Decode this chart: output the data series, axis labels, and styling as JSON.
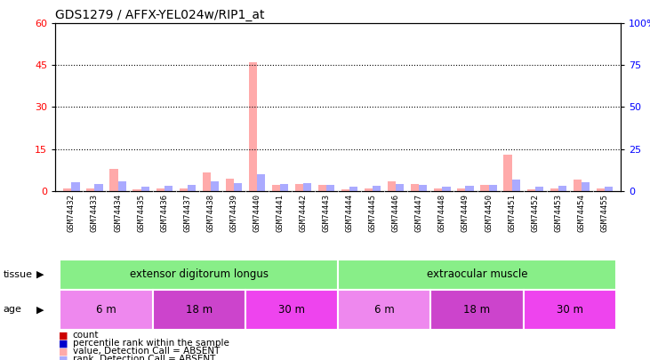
{
  "title": "GDS1279 / AFFX-YEL024w/RIP1_at",
  "samples": [
    "GSM74432",
    "GSM74433",
    "GSM74434",
    "GSM74435",
    "GSM74436",
    "GSM74437",
    "GSM74438",
    "GSM74439",
    "GSM74440",
    "GSM74441",
    "GSM74442",
    "GSM74443",
    "GSM74444",
    "GSM74445",
    "GSM74446",
    "GSM74447",
    "GSM74448",
    "GSM74449",
    "GSM74450",
    "GSM74451",
    "GSM74452",
    "GSM74453",
    "GSM74454",
    "GSM74455"
  ],
  "count_values": [
    1.0,
    1.0,
    8.0,
    0.5,
    1.0,
    1.0,
    6.5,
    4.5,
    46.0,
    2.0,
    2.5,
    2.0,
    0.5,
    1.0,
    3.5,
    2.5,
    0.8,
    1.0,
    2.0,
    13.0,
    0.5,
    1.0,
    4.0,
    1.0
  ],
  "rank_values": [
    5.0,
    4.0,
    5.5,
    2.5,
    3.0,
    3.5,
    5.5,
    4.5,
    10.0,
    4.0,
    4.5,
    3.5,
    2.5,
    3.0,
    4.0,
    3.5,
    2.5,
    3.0,
    3.5,
    6.5,
    2.5,
    3.0,
    5.0,
    2.5
  ],
  "absent_flag": [
    true,
    true,
    true,
    true,
    true,
    true,
    true,
    true,
    true,
    true,
    true,
    true,
    true,
    true,
    true,
    true,
    true,
    true,
    true,
    true,
    true,
    true,
    true,
    true
  ],
  "ylim_left": [
    0,
    60
  ],
  "ylim_right": [
    0,
    100
  ],
  "yticks_left": [
    0,
    15,
    30,
    45,
    60
  ],
  "yticks_right": [
    0,
    25,
    50,
    75,
    100
  ],
  "color_count": "#cc0000",
  "color_rank": "#0000cc",
  "color_count_absent": "#ffaaaa",
  "color_rank_absent": "#aaaaff",
  "tissue_groups": [
    {
      "label": "extensor digitorum longus",
      "start": 0,
      "end": 11,
      "color": "#88ee88"
    },
    {
      "label": "extraocular muscle",
      "start": 12,
      "end": 23,
      "color": "#88ee88"
    }
  ],
  "age_groups": [
    {
      "label": "6 m",
      "start": 0,
      "end": 3,
      "color": "#ee88ee"
    },
    {
      "label": "18 m",
      "start": 4,
      "end": 7,
      "color": "#cc44cc"
    },
    {
      "label": "30 m",
      "start": 8,
      "end": 11,
      "color": "#ee44ee"
    },
    {
      "label": "6 m",
      "start": 12,
      "end": 15,
      "color": "#ee88ee"
    },
    {
      "label": "18 m",
      "start": 16,
      "end": 19,
      "color": "#cc44cc"
    },
    {
      "label": "30 m",
      "start": 20,
      "end": 23,
      "color": "#ee44ee"
    }
  ],
  "bar_width": 0.35,
  "background_color": "#ffffff",
  "xlabel_bg_color": "#cccccc",
  "tick_label_fontsize": 6.5,
  "title_fontsize": 10
}
